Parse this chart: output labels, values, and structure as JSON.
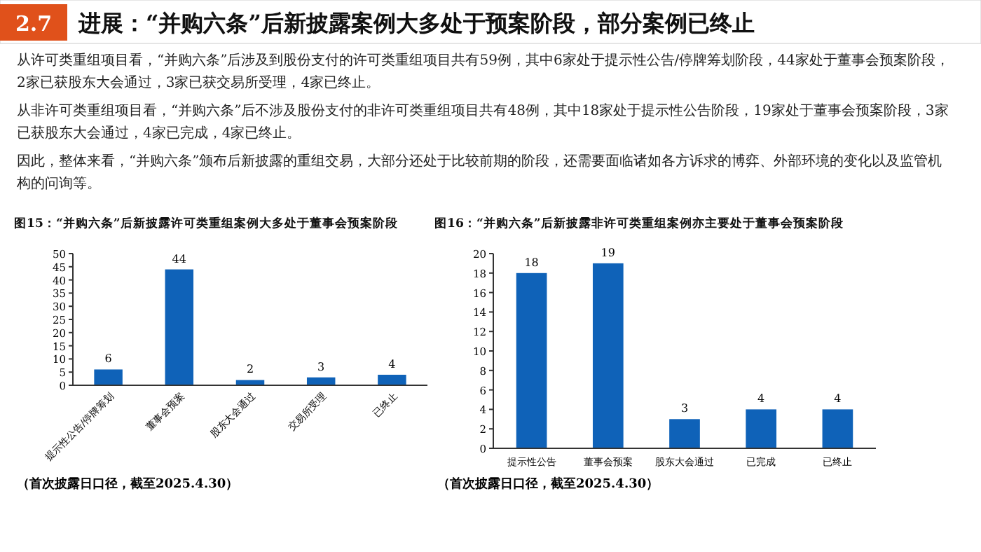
{
  "chart_data": [
    {
      "type": "other",
      "title": "进展：“并购六条”后新披露案例大多处于预案阶段，部分案例已终止",
      "subtitle": "2.7",
      "annotations": [
        "从许可类重组项目看，“并购六条”后涉及到股份支付的许可类重组项目共有59例，其中6家处于提示性公告/停牌筹划阶段，44家处于董事会预案阶段，2家已获股东大会通过，3家已获交易所受理，4家已终止。",
        "从非许可类重组项目看，“并购六条”后不涉及股份支付的非许可类重组项目共有48例，其中18家处于提示性公告阶段，19家处于董事会预案阶段，3家已获股东大会通过，4家已完成，4家已终止。",
        "因此，整体来看，“并购六条”颁布后新披露的重组交易，大部分还处于比较前期的阶段，还需要面临诸如各方诉求的博弈、外部环境的变化以及监管机构的问询等。"
      ]
    },
    {
      "type": "bar",
      "title": "图15：“并购六条”后新披露许可类重组案例大多处于董事会预案阶段",
      "categories": [
        "提示性公告/停牌筹划",
        "董事会预案",
        "股东大会通过",
        "交易所受理",
        "已终止"
      ],
      "values": [
        6,
        44,
        2,
        3,
        4
      ],
      "color": "#0f62b8",
      "ylim": [
        0,
        50
      ],
      "yticks": [
        0,
        5,
        10,
        15,
        20,
        25,
        30,
        35,
        40,
        45,
        50
      ],
      "data_labels": true,
      "annotations": [
        "（首次披露日口径，截至2025.4.30）"
      ]
    },
    {
      "type": "bar",
      "title": "图16：“并购六条”后新披露非许可类重组案例亦主要处于董事会预案阶段",
      "categories": [
        "提示性公告",
        "董事会预案",
        "股东大会通过",
        "已完成",
        "已终止"
      ],
      "values": [
        18,
        19,
        3,
        4,
        4
      ],
      "color": "#0f62b8",
      "ylim": [
        0,
        20
      ],
      "yticks": [
        0,
        2,
        4,
        6,
        8,
        10,
        12,
        14,
        16,
        18,
        20
      ],
      "data_labels": true,
      "annotations": [
        "（首次披露日口径，截至2025.4.30）"
      ]
    }
  ]
}
